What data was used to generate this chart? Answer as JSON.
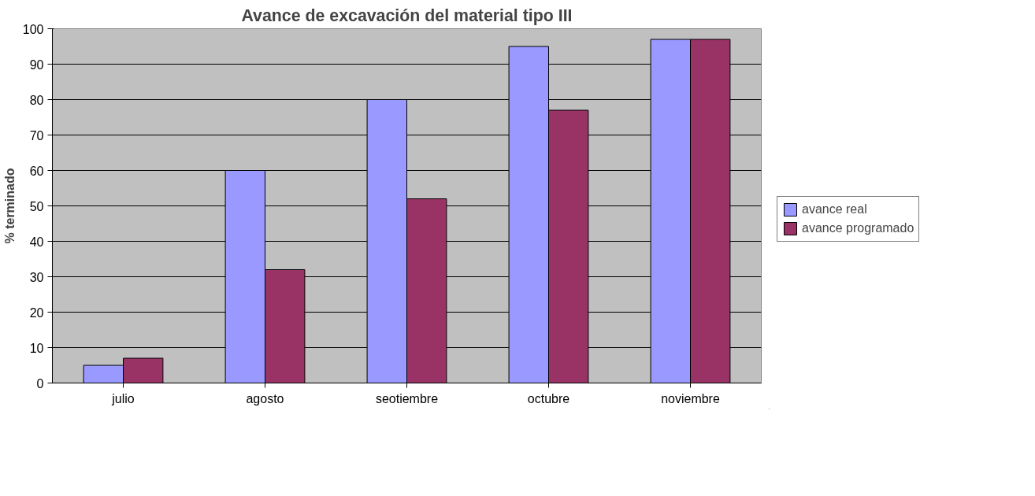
{
  "chart_data": {
    "type": "bar",
    "title": "Avance de excavación del material tipo III",
    "ylabel": "% terminado",
    "categories": [
      "julio",
      "agosto",
      "seotiembre",
      "octubre",
      "noviembre"
    ],
    "series": [
      {
        "name": "avance real",
        "color": "#9999ff",
        "values": [
          5,
          60,
          80,
          95,
          97
        ]
      },
      {
        "name": "avance programado",
        "color": "#993366",
        "values": [
          7,
          32,
          52,
          77,
          97
        ]
      }
    ],
    "ylim": [
      0,
      100
    ],
    "yticks": [
      0,
      10,
      20,
      30,
      40,
      50,
      60,
      70,
      80,
      90,
      100
    ],
    "grid": "y",
    "legend": "right"
  }
}
